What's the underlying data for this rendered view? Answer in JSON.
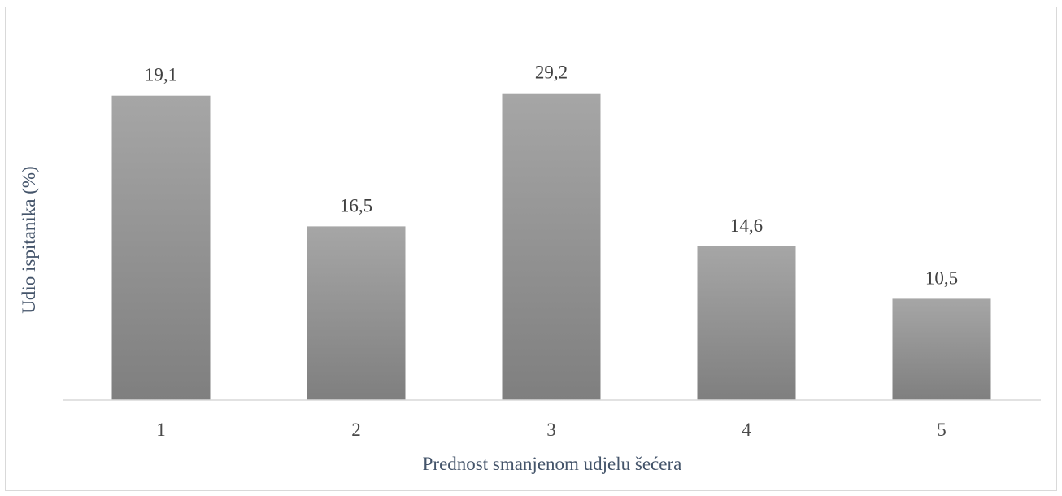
{
  "chart_data": {
    "type": "bar",
    "title": "",
    "xlabel": "Prednost smanjenom udjelu šećera",
    "ylabel": "Udio ispitanika (%)",
    "categories": [
      "1",
      "2",
      "3",
      "4",
      "5"
    ],
    "values": [
      19.1,
      16.5,
      29.2,
      14.6,
      10.5
    ],
    "data_labels": [
      "19,1",
      "16,5",
      "29,2",
      "14,6",
      "10,5"
    ],
    "value_map": [
      {
        "value": 10.5,
        "level": 0.328
      },
      {
        "value": 14.6,
        "level": 0.498
      },
      {
        "value": 16.5,
        "level": 0.562
      },
      {
        "value": 19.1,
        "level": 0.985
      },
      {
        "value": 29.2,
        "level": 0.993
      }
    ],
    "grid": false,
    "legend": "none",
    "colors": {
      "bar_top": "#a6a6a6",
      "bar_bottom": "#7f7f7f",
      "axis_line": "#d9d9d9",
      "axis_title": "#44546a",
      "tick_text": "#4a4a4a",
      "data_label": "#404040",
      "frame": "#d9d9d9"
    }
  }
}
